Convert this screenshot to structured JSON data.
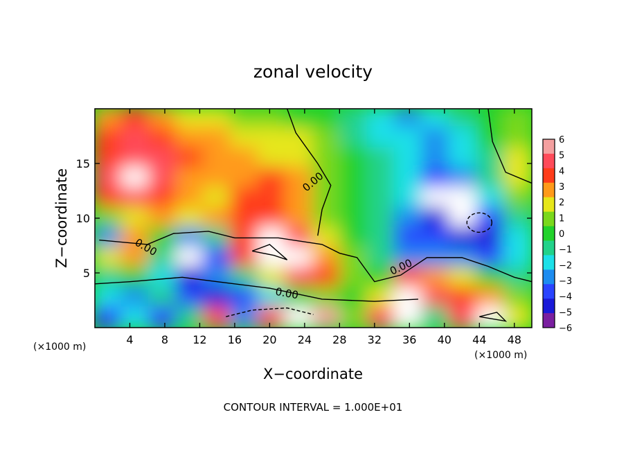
{
  "chart_data": {
    "type": "heatmap",
    "title": "zonal velocity",
    "xlabel": "X−coordinate",
    "ylabel": "Z−coordinate",
    "x_units_left": "(×1000 m)",
    "x_units_right": "(×1000 m)",
    "xlim": [
      0,
      50
    ],
    "ylim": [
      0,
      20
    ],
    "x_ticks": [
      4,
      8,
      12,
      16,
      20,
      24,
      28,
      32,
      36,
      40,
      44,
      48
    ],
    "y_ticks": [
      5,
      10,
      15
    ],
    "colorbar": {
      "min": -6,
      "max": 6,
      "ticks": [
        "6",
        "5",
        "4",
        "3",
        "2",
        "1",
        "0",
        "−1",
        "−2",
        "−3",
        "−4",
        "−5",
        "−6"
      ]
    },
    "contour_labels": [
      "0.00",
      "0.00",
      "0.00",
      "0.00"
    ],
    "footer": "CONTOUR INTERVAL = 1.000E+01",
    "field": [
      [
        3.0,
        3.5,
        3.0,
        2.0,
        1.5,
        1.0,
        0.5,
        0.0,
        -0.5,
        -1.5,
        -2.5,
        -3.0,
        -2.5,
        -1.5,
        -0.5,
        0.5
      ],
      [
        3.5,
        4.5,
        4.0,
        3.0,
        2.5,
        2.0,
        1.5,
        1.5,
        0.5,
        -1.0,
        -2.0,
        -2.5,
        -3.0,
        -2.0,
        -0.5,
        1.0
      ],
      [
        4.0,
        5.0,
        5.0,
        3.5,
        3.0,
        2.5,
        2.0,
        2.0,
        1.0,
        -0.5,
        -1.5,
        -2.0,
        -3.0,
        -2.5,
        -1.0,
        1.5
      ],
      [
        4.5,
        6.0,
        5.0,
        3.0,
        2.5,
        3.0,
        3.5,
        2.5,
        1.0,
        -0.5,
        -1.0,
        -2.0,
        -4.0,
        -3.0,
        -1.0,
        1.5
      ],
      [
        3.5,
        4.5,
        4.0,
        2.5,
        2.0,
        3.5,
        4.0,
        3.0,
        0.5,
        -0.5,
        -1.0,
        -2.5,
        -6.0,
        -6.0,
        -2.0,
        0.5
      ],
      [
        1.0,
        2.0,
        2.5,
        2.0,
        2.5,
        3.5,
        3.5,
        3.0,
        1.0,
        0.0,
        -1.0,
        -3.0,
        -5.0,
        -6.0,
        -4.0,
        -1.0
      ],
      [
        -3.0,
        2.5,
        0.0,
        -3.5,
        -1.0,
        3.5,
        6.0,
        4.5,
        1.5,
        0.0,
        -1.5,
        -4.0,
        -4.0,
        -5.5,
        -5.0,
        -2.0
      ],
      [
        1.5,
        3.0,
        -1.5,
        -6.0,
        -4.0,
        4.0,
        6.0,
        6.0,
        3.0,
        0.5,
        -1.0,
        -3.0,
        -3.0,
        -3.5,
        -4.0,
        -2.5
      ],
      [
        -1.0,
        -0.5,
        -2.5,
        -5.0,
        -3.0,
        -1.0,
        2.0,
        5.0,
        4.0,
        1.0,
        0.0,
        3.5,
        3.0,
        1.5,
        0.0,
        -1.0
      ],
      [
        -2.5,
        -3.0,
        -1.5,
        -4.0,
        -5.0,
        -4.0,
        -2.0,
        0.0,
        0.5,
        0.0,
        2.0,
        6.0,
        5.0,
        4.0,
        2.5,
        1.0
      ],
      [
        -4.0,
        -2.0,
        -4.5,
        -1.0,
        5.0,
        -3.5,
        5.0,
        6.0,
        5.5,
        0.5,
        5.0,
        6.0,
        -1.0,
        4.5,
        6.0,
        1.5
      ]
    ]
  }
}
